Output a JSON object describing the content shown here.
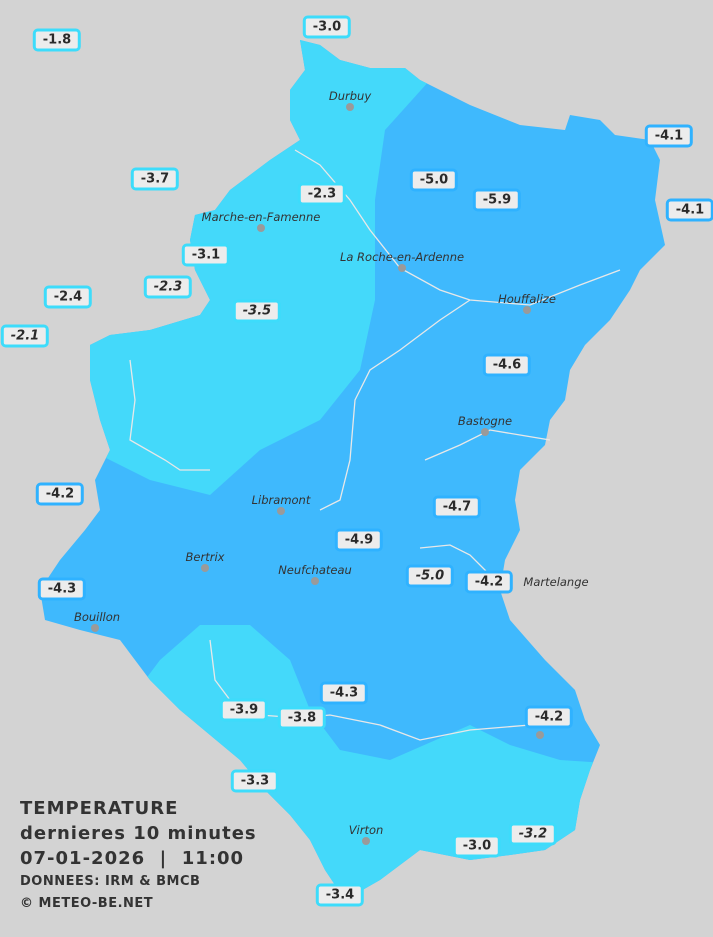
{
  "legend": {
    "title": "TEMPERATURE",
    "period": "dernieres 10 minutes",
    "datetime": "07-01-2026  |  11:00",
    "source": "DONNEES: IRM & BMCB",
    "copyright": "© METEO-BE.NET"
  },
  "colors": {
    "background": "#d3d3d3",
    "zone_above_minus4": "#44d9fa",
    "zone_below_minus4": "#3fb9fd",
    "label_border_light": "#3ddcfb",
    "label_border_dark": "#2fb2ff"
  },
  "towns": [
    "Durbuy",
    "Marche-en-Famenne",
    "La Roche-en-Ardenne",
    "Houffalize",
    "Bastogne",
    "Libramont",
    "Bertrix",
    "Neufchateau",
    "Bouillon",
    "Martelange",
    "Virton"
  ],
  "stations": [
    "-1.8",
    "-3.0",
    "-4.1",
    "-3.7",
    "-5.0",
    "-2.3",
    "-5.9",
    "-4.1",
    "-3.1",
    "-2.3",
    "-2.4",
    "-2.1",
    "-3.5",
    "-4.6",
    "-4.2",
    "-4.7",
    "-4.9",
    "-5.0",
    "-4.2",
    "-4.3",
    "-4.3",
    "-3.9",
    "-3.8",
    "-4.2",
    "-3.3",
    "-3.0",
    "-3.2",
    "-3.4"
  ]
}
